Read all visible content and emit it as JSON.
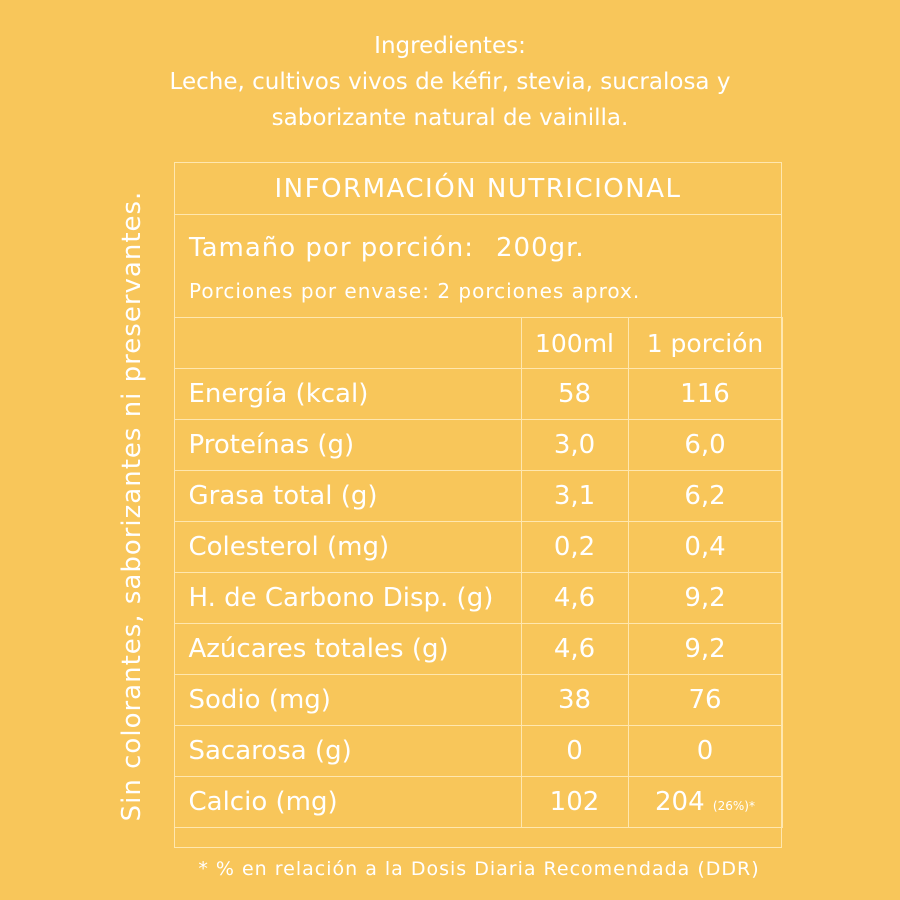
{
  "ingredients": {
    "heading": "Ingredientes:",
    "line1": "Leche, cultivos vivos de kéfir, stevia, sucralosa y",
    "line2": "saborizante natural de vainilla."
  },
  "side_text": "Sin colorantes, saborizantes ni preservantes.",
  "panel": {
    "title": "INFORMACIÓN NUTRICIONAL",
    "serving_label": "Tamaño por porción:",
    "serving_value": "200gr.",
    "portions": "Porciones por envase: 2 porciones  aprox."
  },
  "table": {
    "headers": [
      "",
      "100ml",
      "1 porción"
    ],
    "rows": [
      {
        "label": "Energía (kcal)",
        "v100": "58",
        "vportion": "116"
      },
      {
        "label": "Proteínas (g)",
        "v100": "3,0",
        "vportion": "6,0"
      },
      {
        "label": "Grasa total (g)",
        "v100": "3,1",
        "vportion": "6,2"
      },
      {
        "label": "Colesterol (mg)",
        "v100": "0,2",
        "vportion": "0,4"
      },
      {
        "label": "H. de Carbono Disp. (g)",
        "v100": "4,6",
        "vportion": "9,2"
      },
      {
        "label": "Azúcares totales (g)",
        "v100": "4,6",
        "vportion": "9,2"
      },
      {
        "label": "Sodio (mg)",
        "v100": "38",
        "vportion": "76"
      },
      {
        "label": "Sacarosa (g)",
        "v100": "0",
        "vportion": "0"
      },
      {
        "label": "Calcio (mg)",
        "v100": "102",
        "vportion": "204",
        "vportion_note": "(26%)*"
      }
    ]
  },
  "footnote": "* % en relación a la Dosis Diaria Recomendada (DDR)",
  "colors": {
    "background": "#F8C65A",
    "text": "#FFFFFF",
    "rule": "#FFE7AE"
  }
}
